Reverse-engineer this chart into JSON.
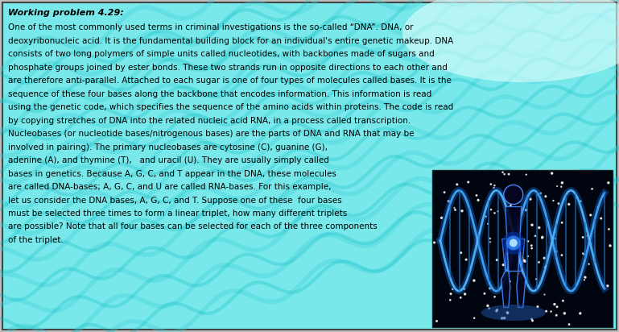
{
  "title": "Working problem 4.29:",
  "background_color": "#a0eef0",
  "border_color": "#333333",
  "title_color": "#000000",
  "text_color": "#000000",
  "figsize": [
    7.69,
    4.12
  ],
  "dpi": 100,
  "lines_full": [
    "One of the most commonly used terms in criminal investigations is the so-called “DNA”. DNA, or",
    "deoxyribonucleic acid. It is the fundamental building block for an individual's entire genetic makeup. DNA",
    "consists of two long polymers of simple units called nucleotides, with backbones made of sugars and",
    "phosphate groups joined by ester bonds. These two strands run in opposite directions to each other and",
    "are therefore anti-parallel. Attached to each sugar is one of four types of molecules called bases. It is the",
    "sequence of these four bases along the backbone that encodes information. This information is read",
    "using the genetic code, which specifies the sequence of the amino acids within proteins. The code is read",
    "by copying stretches of DNA into the related nucleic acid RNA, in a process called transcription.",
    "Nucleobases (or nucleotide bases/nitrogenous bases) are the parts of DNA and RNA that may be",
    "involved in pairing). The primary nucleobases are cytosine (C), guanine (G),"
  ],
  "lines_partial": [
    "adenine (A), and thymine (T),   and uracil (U). They are usually simply called",
    "bases in genetics. Because A, G, C, and T appear in the DNA, these molecules",
    "are called DNA-bases; A, G, C, and U are called RNA-bases. For this example,",
    "let us consider the DNA bases, A, G, C, and T. Suppose one of these  four bases",
    "must be selected three times to form a linear triplet, how many different triplets",
    "are possible? Note that all four bases can be selected for each of the three components",
    "of the triplet."
  ]
}
